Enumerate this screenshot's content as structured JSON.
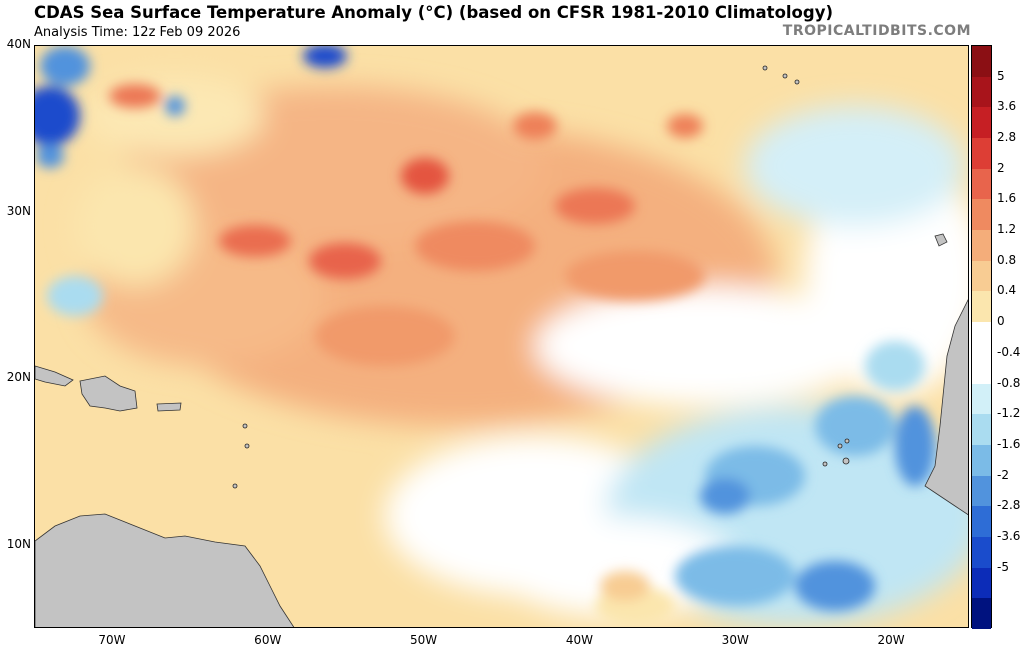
{
  "header": {
    "title": "CDAS Sea Surface Temperature Anomaly (°C) (based on CFSR 1981-2010 Climatology)",
    "analysis_time": "Analysis Time: 12z Feb 09 2026",
    "brand": "TROPICALTIDBITS.COM"
  },
  "axes": {
    "lat_labels": [
      "40N",
      "30N",
      "20N",
      "10N"
    ],
    "lat_values": [
      40,
      30,
      20,
      10
    ],
    "lon_labels": [
      "70W",
      "60W",
      "50W",
      "40W",
      "30W",
      "20W"
    ],
    "lon_values": [
      -70,
      -60,
      -50,
      -40,
      -30,
      -20
    ],
    "lon_range": [
      -75,
      -15
    ],
    "lat_range": [
      5,
      40
    ]
  },
  "colorbar": {
    "labels": [
      "5",
      "3.6",
      "2.8",
      "2",
      "1.6",
      "1.2",
      "0.8",
      "0.4",
      "0",
      "-0.4",
      "-0.8",
      "-1.2",
      "-1.6",
      "-2",
      "-2.8",
      "-3.6",
      "-5"
    ],
    "colors": [
      "#8b0f14",
      "#a8141b",
      "#c61f24",
      "#dd3e35",
      "#e8644c",
      "#ef8a60",
      "#f4ad7a",
      "#f8cc93",
      "#fbe6ae",
      "#ffffff",
      "#ffffff",
      "#d2f0f8",
      "#aadcf0",
      "#7bbbe7",
      "#5193dd",
      "#2e6dd6",
      "#1a4ccc",
      "#0c2cb8",
      "#00127f"
    ]
  },
  "map": {
    "land_color": "#c3c3c3",
    "ocean_base_color": "#fbe6ae"
  }
}
